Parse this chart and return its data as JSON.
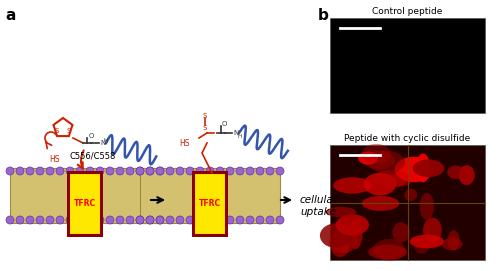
{
  "panel_a_label": "a",
  "panel_b_label": "b",
  "label_fontsize": 11,
  "label_fontweight": "bold",
  "tfrc_text": "TFRC",
  "tfrc_color": "#FF0000",
  "tfrc_bg": "#FFE800",
  "tfrc_border": "#8B0000",
  "membrane_color": "#D4C170",
  "lipid_head_color": "#9966CC",
  "cellular_uptake_text": "cellular\nuptake",
  "cellular_uptake_style": "italic",
  "c556_label": "C556/C558",
  "control_peptide_label": "Control peptide",
  "cyclic_disulfide_label": "Peptide with cyclic disulfide",
  "arrow_color": "black",
  "red_arrow_color": "#CC0000",
  "helix_color_dark": "#3355AA",
  "helix_color_light": "#8899CC",
  "red_mol_color": "#CC2200",
  "scale_bar_color": "white",
  "bg_color": "white"
}
